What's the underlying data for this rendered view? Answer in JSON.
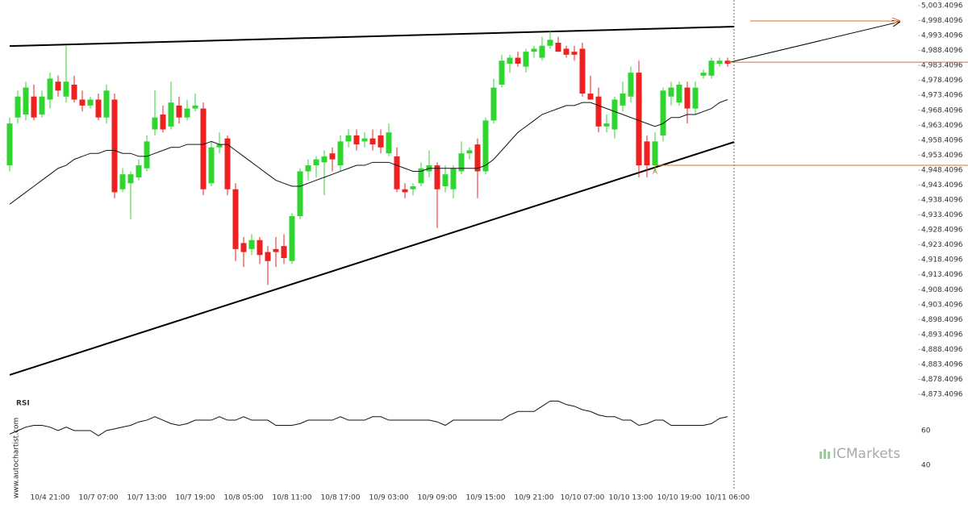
{
  "chart_data": {
    "type": "candlestick",
    "categories": [
      null,
      null,
      null,
      null,
      null,
      "10/4 21:00",
      null,
      null,
      null,
      null,
      null,
      "10/7 07:00",
      null,
      null,
      null,
      null,
      null,
      "10/7 13:00",
      null,
      null,
      null,
      null,
      null,
      "10/7 19:00",
      null,
      null,
      null,
      null,
      null,
      "10/8 05:00",
      null,
      null,
      null,
      null,
      null,
      "10/8 11:00",
      null,
      null,
      null,
      null,
      null,
      "10/8 17:00",
      null,
      null,
      null,
      null,
      null,
      "10/9 03:00",
      null,
      null,
      null,
      null,
      null,
      "10/9 09:00",
      null,
      null,
      null,
      null,
      null,
      "10/9 15:00",
      null,
      null,
      null,
      null,
      null,
      "10/9 21:00",
      null,
      null,
      null,
      null,
      null,
      "10/10 07:00",
      null,
      null,
      null,
      null,
      null,
      "10/10 13:00",
      null,
      null,
      null,
      null,
      null,
      "10/10 19:00",
      null,
      null,
      null,
      null,
      null,
      "10/11 06:00"
    ],
    "up_color": "#2fd62f",
    "down_color": "#ee2020",
    "open": [
      4950,
      4966,
      4967,
      4973,
      4967,
      4972,
      4978,
      4973,
      4977,
      4972,
      4970,
      4972,
      4966,
      4972,
      4942,
      4944,
      4946,
      4949,
      4962,
      4967,
      4963,
      4970,
      4966,
      4969,
      4969,
      4944,
      4956,
      4959,
      4942,
      4924,
      4922,
      4925,
      4921,
      4922,
      4923,
      4918,
      4933,
      4948,
      4950,
      4951,
      4954,
      4950,
      4958,
      4960,
      4958,
      4959,
      4960,
      4954,
      4953,
      4942,
      4942,
      4944,
      4948,
      4950,
      4943,
      4942,
      4948,
      4954,
      4957,
      4948,
      4965,
      4977,
      4984,
      4986,
      4983,
      4988,
      4986,
      4990,
      4991,
      4989,
      4988,
      4989,
      4974,
      4973,
      4963,
      4962,
      4970,
      4973,
      4981,
      4958,
      4950,
      4960,
      4973,
      4971,
      4976,
      4969,
      4980,
      4980,
      4984,
      4985
    ],
    "high": [
      4966,
      4975,
      4978,
      4977,
      4975,
      4981,
      4980,
      4990,
      4980,
      4975,
      4973,
      4974,
      4977,
      4974,
      4949,
      4948,
      4952,
      4960,
      4975,
      4970,
      4978,
      4973,
      4972,
      4974,
      4971,
      4958,
      4961,
      4960,
      4944,
      4926,
      4927,
      4926,
      4923,
      4926,
      4927,
      4934,
      4949,
      4952,
      4953,
      4955,
      4956,
      4960,
      4962,
      4962,
      4961,
      4962,
      4962,
      4964,
      4956,
      4944,
      4944,
      4951,
      4955,
      4951,
      4950,
      4950,
      4958,
      4956,
      4959,
      4966,
      4979,
      4987,
      4987,
      4988,
      4989,
      4990,
      4993,
      4995,
      4993,
      4990,
      4990,
      4991,
      4980,
      4976,
      4967,
      4973,
      4978,
      4983,
      4985,
      4960,
      4961,
      4976,
      4978,
      4978,
      4978,
      4978,
      4982,
      4986,
      4986,
      4986
    ],
    "low": [
      4948,
      4964,
      4965,
      4965,
      4966,
      4969,
      4973,
      4971,
      4971,
      4968,
      4969,
      4965,
      4964,
      4939,
      4941,
      4932,
      4945,
      4948,
      4960,
      4961,
      4962,
      4964,
      4965,
      4968,
      4940,
      4943,
      4954,
      4940,
      4918,
      4916,
      4920,
      4917,
      4910,
      4916,
      4917,
      4917,
      4932,
      4945,
      4946,
      4940,
      4948,
      4948,
      4956,
      4955,
      4956,
      4955,
      4954,
      4953,
      4941,
      4939,
      4940,
      4943,
      4946,
      4929,
      4941,
      4939,
      4947,
      4952,
      4939,
      4947,
      4964,
      4976,
      4981,
      4983,
      4981,
      4986,
      4985,
      4989,
      4988,
      4986,
      4985,
      4973,
      4972,
      4961,
      4961,
      4959,
      4968,
      4971,
      4946,
      4946,
      4948,
      4958,
      4970,
      4970,
      4964,
      4967,
      4979,
      4979,
      4983,
      4983
    ],
    "close": [
      4964,
      4973,
      4976,
      4966,
      4973,
      4979,
      4975,
      4978,
      4972,
      4970,
      4972,
      4966,
      4975,
      4941,
      4947,
      4947,
      4950,
      4958,
      4966,
      4962,
      4971,
      4966,
      4969,
      4970,
      4942,
      4956,
      4957,
      4942,
      4922,
      4921,
      4925,
      4920,
      4918,
      4921,
      4919,
      4933,
      4948,
      4950,
      4952,
      4953,
      4952,
      4958,
      4960,
      4957,
      4959,
      4957,
      4956,
      4961,
      4942,
      4941,
      4943,
      4949,
      4950,
      4942,
      4947,
      4949,
      4954,
      4955,
      4948,
      4965,
      4976,
      4985,
      4986,
      4984,
      4988,
      4989,
      4990,
      4992,
      4988,
      4987,
      4987,
      4974,
      4972,
      4963,
      4964,
      4972,
      4974,
      4981,
      4950,
      4950,
      4958,
      4975,
      4976,
      4977,
      4969,
      4976,
      4981,
      4985,
      4985,
      4984
    ],
    "moving_average": {
      "color": "#111111",
      "values": [
        4937,
        4939,
        4941,
        4943,
        4945,
        4947,
        4949,
        4950,
        4952,
        4953,
        4954,
        4954,
        4955,
        4955,
        4954,
        4954,
        4953,
        4953,
        4954,
        4955,
        4956,
        4956,
        4957,
        4957,
        4957,
        4958,
        4957,
        4957,
        4955,
        4953,
        4951,
        4949,
        4947,
        4945,
        4944,
        4943,
        4943,
        4944,
        4945,
        4946,
        4947,
        4948,
        4949,
        4950,
        4950,
        4951,
        4951,
        4951,
        4950,
        4949,
        4948,
        4948,
        4949,
        4949,
        4949,
        4949,
        4949,
        4949,
        4949,
        4950,
        4952,
        4955,
        4958,
        4961,
        4963,
        4965,
        4967,
        4968,
        4969,
        4970,
        4970,
        4971,
        4971,
        4970,
        4969,
        4968,
        4967,
        4966,
        4965,
        4964,
        4963,
        4964,
        4966,
        4966,
        4967,
        4967,
        4968,
        4969,
        4971,
        4972
      ]
    },
    "ylim": [
      4871.8,
      5005.3
    ],
    "yticks": [
      {
        "value": 5003.4096,
        "label": "5,003.4096"
      },
      {
        "value": 4998.4096,
        "label": "4,998.4096"
      },
      {
        "value": 4993.4096,
        "label": "4,993.4096"
      },
      {
        "value": 4988.4096,
        "label": "4,988.4096"
      },
      {
        "value": 4983.4096,
        "label": "4,983.4096"
      },
      {
        "value": 4978.4096,
        "label": "4,978.4096"
      },
      {
        "value": 4973.4096,
        "label": "4,973.4096"
      },
      {
        "value": 4968.4096,
        "label": "4,968.4096"
      },
      {
        "value": 4963.4096,
        "label": "4,963.4096"
      },
      {
        "value": 4958.4096,
        "label": "4,958.4096"
      },
      {
        "value": 4953.4096,
        "label": "4,953.4096"
      },
      {
        "value": 4948.4096,
        "label": "4,948.4096"
      },
      {
        "value": 4943.4096,
        "label": "4,943.4096"
      },
      {
        "value": 4938.4096,
        "label": "4,938.4096"
      },
      {
        "value": 4933.4096,
        "label": "4,933.4096"
      },
      {
        "value": 4928.4096,
        "label": "4,928.4096"
      },
      {
        "value": 4923.4096,
        "label": "4,923.4096"
      },
      {
        "value": 4918.4096,
        "label": "4,918.4096"
      },
      {
        "value": 4913.4096,
        "label": "4,913.4096"
      },
      {
        "value": 4908.4096,
        "label": "4,908.4096"
      },
      {
        "value": 4903.4096,
        "label": "4,903.4096"
      },
      {
        "value": 4898.4096,
        "label": "4,898.4096"
      },
      {
        "value": 4893.4096,
        "label": "4,893.4096"
      },
      {
        "value": 4888.4096,
        "label": "4,888.4096"
      },
      {
        "value": 4883.4096,
        "label": "4,883.4096"
      },
      {
        "value": 4878.4096,
        "label": "4,878.4096"
      },
      {
        "value": 4873.4096,
        "label": "4,873.4096"
      }
    ],
    "trendlines": [
      {
        "color": "#000000",
        "values": [
          4989.9,
          4996.4
        ]
      },
      {
        "color": "#000000",
        "values": [
          4879.9,
          4957.8
        ]
      }
    ],
    "projection": {
      "color": "#000000",
      "values": [
        4984.5,
        4998.0
      ]
    },
    "levels": {
      "color": "#e07020",
      "values": [
        4984.5,
        4950.0,
        4998.3
      ]
    },
    "marker_label": "A",
    "rsi": {
      "title": "RSI",
      "color": "#111111",
      "ylim": [
        24.7,
        78.1
      ],
      "yticks": [
        60,
        40
      ],
      "values": [
        58,
        60,
        62,
        63,
        63,
        62,
        60,
        62,
        60,
        60,
        60,
        57,
        60,
        61,
        62,
        63,
        65,
        66,
        68,
        66,
        64,
        63,
        64,
        66,
        66,
        66,
        68,
        66,
        66,
        68,
        66,
        66,
        66,
        63,
        63,
        63,
        64,
        66,
        66,
        66,
        66,
        68,
        66,
        66,
        66,
        68,
        68,
        66,
        66,
        66,
        66,
        66,
        66,
        65,
        63,
        66,
        66,
        66,
        66,
        66,
        66,
        66,
        69,
        71,
        71,
        71,
        74,
        77,
        77,
        75,
        74,
        72,
        71,
        69,
        68,
        68,
        66,
        66,
        63,
        64,
        66,
        66,
        63,
        63,
        63,
        63,
        63,
        64,
        67,
        68
      ]
    },
    "watermark": "www.autochartist.com",
    "logo": "ICMarkets"
  }
}
